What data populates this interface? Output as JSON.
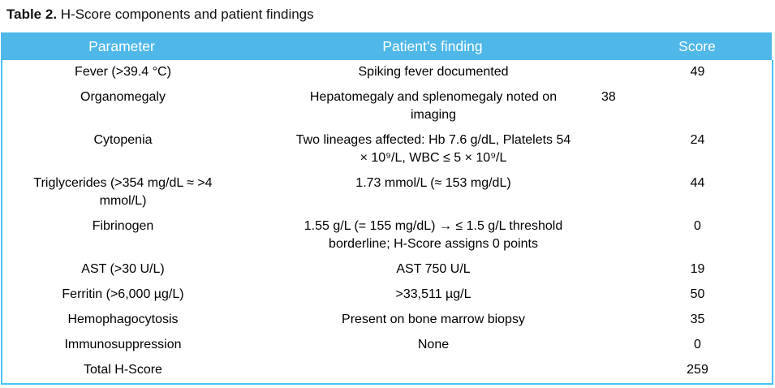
{
  "caption": {
    "label": "Table 2.",
    "title": "H-Score components and patient findings"
  },
  "colors": {
    "header_bg": "#4FB8E9",
    "header_text": "#FFFFFF",
    "table_border": "#49C3F2",
    "body_text": "#000000"
  },
  "table": {
    "headers": {
      "parameter": "Parameter",
      "finding": "Patient’s finding",
      "score": "Score"
    },
    "rows": [
      {
        "parameter": "Fever (>39.4 °C)",
        "finding": "Spiking fever documented",
        "score": "49"
      },
      {
        "parameter": "Organomegaly",
        "finding": "Hepatomegaly and splenomegaly noted on\nimaging",
        "score": "38",
        "score_inline": true
      },
      {
        "parameter": "Cytopenia",
        "finding": "Two lineages affected: Hb 7.6 g/dL, Platelets 54\n× 10⁹/L, WBC ≤ 5 × 10⁹/L",
        "score": "24"
      },
      {
        "parameter": "Triglycerides (>354 mg/dL ≈ >4\nmmol/L)",
        "finding": "1.73 mmol/L (≈ 153 mg/dL)",
        "score": "44"
      },
      {
        "parameter": "Fibrinogen",
        "finding": "1.55 g/L (= 155 mg/dL) → ≤ 1.5 g/L threshold\nborderline; H-Score assigns 0 points",
        "score": "0"
      },
      {
        "parameter": "AST (>30 U/L)",
        "finding": "AST 750 U/L",
        "score": "19"
      },
      {
        "parameter": "Ferritin (>6,000 µg/L)",
        "finding": ">33,511 µg/L",
        "score": "50"
      },
      {
        "parameter": "Hemophagocytosis",
        "finding": "Present on bone marrow biopsy",
        "score": "35"
      },
      {
        "parameter": "Immunosuppression",
        "finding": "None",
        "score": "0"
      },
      {
        "parameter": "Total H-Score",
        "finding": "",
        "score": "259"
      }
    ]
  }
}
